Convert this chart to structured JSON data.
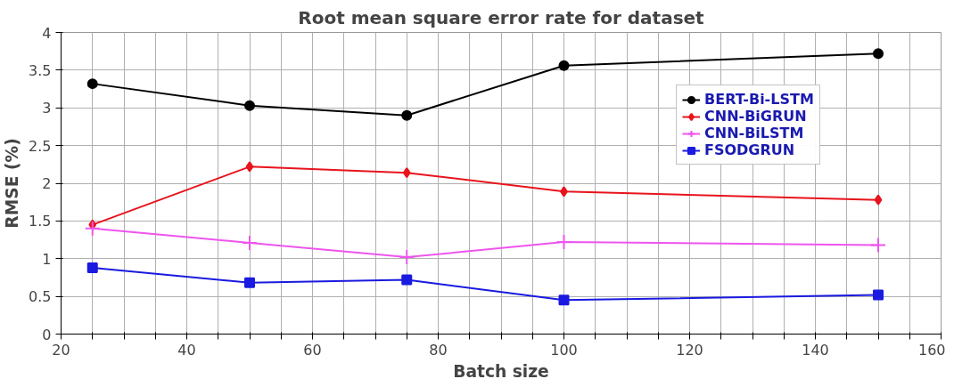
{
  "chart_data": {
    "type": "line",
    "title": "Root mean square error rate for dataset",
    "xlabel": "Batch size",
    "ylabel": "RMSE (%)",
    "x": [
      25,
      50,
      75,
      100,
      150
    ],
    "series": [
      {
        "name": "BERT-Bi-LSTM",
        "color": "#000000",
        "marker": "circle",
        "values": [
          3.32,
          3.03,
          2.9,
          3.56,
          3.72
        ]
      },
      {
        "name": "CNN-BiGRUN",
        "color": "#e8141c",
        "marker": "diamond",
        "values": [
          1.45,
          2.22,
          2.14,
          1.89,
          1.78
        ]
      },
      {
        "name": "CNN-BiLSTM",
        "color": "#ee55ee",
        "marker": "cross",
        "values": [
          1.4,
          1.21,
          1.02,
          1.22,
          1.18
        ]
      },
      {
        "name": "FSODGRUN",
        "color": "#1a1ae0",
        "marker": "square",
        "values": [
          0.88,
          0.68,
          0.72,
          0.45,
          0.52
        ]
      }
    ],
    "xlim": [
      20,
      160
    ],
    "xticks": [
      20,
      {
        "value": 25,
        "label": null
      },
      {
        "value": 30,
        "label": null
      },
      {
        "value": 35,
        "label": null
      },
      40,
      {
        "value": 45,
        "label": null
      },
      {
        "value": 50,
        "label": null
      },
      {
        "value": 55,
        "label": null
      },
      60,
      {
        "value": 65,
        "label": null
      },
      {
        "value": 70,
        "label": null
      },
      {
        "value": 75,
        "label": null
      },
      80,
      {
        "value": 85,
        "label": null
      },
      {
        "value": 90,
        "label": null
      },
      {
        "value": 95,
        "label": null
      },
      100,
      {
        "value": 105,
        "label": null
      },
      {
        "value": 110,
        "label": null
      },
      {
        "value": 115,
        "label": null
      },
      120,
      {
        "value": 125,
        "label": null
      },
      {
        "value": 130,
        "label": null
      },
      {
        "value": 135,
        "label": null
      },
      140,
      {
        "value": 145,
        "label": null
      },
      {
        "value": 150,
        "label": null
      },
      {
        "value": 155,
        "label": null
      },
      160
    ],
    "ylim": [
      0,
      4
    ],
    "yticks": [
      0,
      0.5,
      1,
      1.5,
      2,
      2.5,
      3,
      3.5,
      4
    ],
    "grid": true,
    "legend": "right",
    "line_style": "solid"
  }
}
